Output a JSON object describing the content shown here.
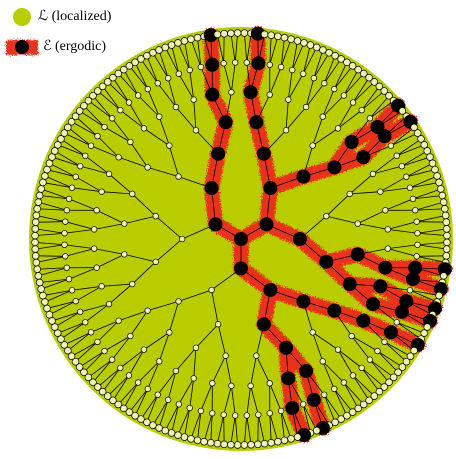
{
  "legend": [
    {
      "label": "ℒ (localized)"
    },
    {
      "label": "ℰ (ergodic)"
    }
  ]
}
